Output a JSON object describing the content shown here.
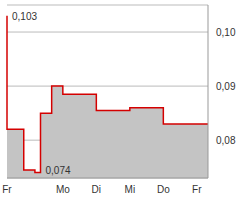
{
  "chart_data": {
    "type": "area",
    "categories": [
      "Fr",
      null,
      null,
      null,
      null,
      null,
      null,
      null,
      null,
      null,
      "Mo",
      null,
      null,
      null,
      null,
      null,
      "Di",
      null,
      null,
      null,
      null,
      null,
      "Mi",
      null,
      null,
      null,
      null,
      null,
      "Do",
      null,
      null,
      null,
      null,
      null,
      "Fr",
      null,
      null
    ],
    "values": [
      0.103,
      0.082,
      0.082,
      0.082,
      0.0745,
      0.0745,
      0.074,
      0.085,
      0.085,
      0.09,
      0.09,
      0.0885,
      0.0885,
      0.0885,
      0.0885,
      0.0885,
      0.0885,
      0.0855,
      0.0855,
      0.0855,
      0.0855,
      0.0855,
      0.0855,
      0.086,
      0.086,
      0.086,
      0.086,
      0.086,
      0.086,
      0.083,
      0.083,
      0.083,
      0.083,
      0.083,
      0.083,
      0.083,
      0.083
    ],
    "color": "#d40000",
    "ylim": [
      0.073,
      0.105
    ],
    "yticks": [
      {
        "value": 0.08,
        "label": "0,08"
      },
      {
        "value": 0.09,
        "label": "0,09"
      },
      {
        "value": 0.1,
        "label": "0,10"
      }
    ],
    "grid": true,
    "annotations": [
      {
        "text": "0,103",
        "x": 0,
        "y": 0.103
      },
      {
        "text": "0,074",
        "x": 6,
        "y": 0.074
      }
    ]
  }
}
